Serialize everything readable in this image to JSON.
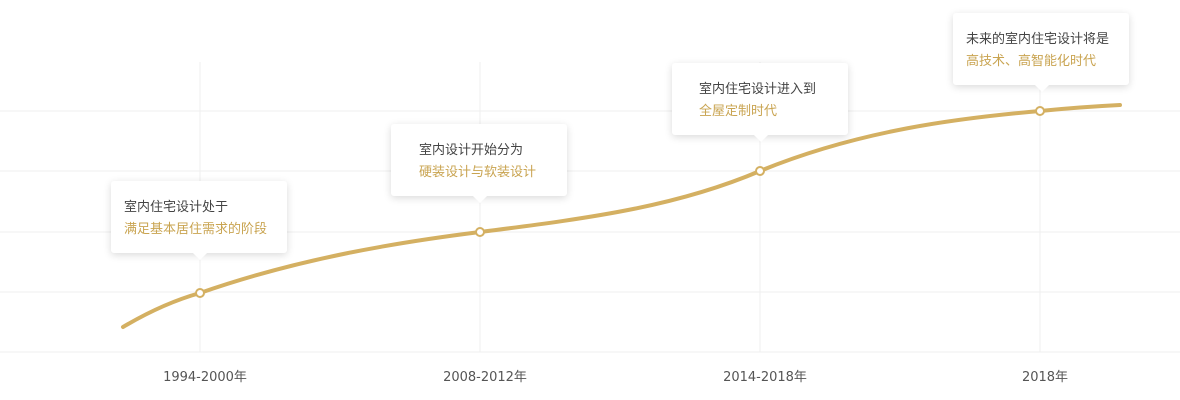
{
  "timeline": {
    "items": [
      {
        "period": "1994-2000年",
        "line1": "室内住宅设计处于",
        "line2": "满足基本居住需求的阶段"
      },
      {
        "period": "2008-2012年",
        "line1": "室内设计开始分为",
        "line2": "硬装设计与软装设计"
      },
      {
        "period": "2014-2018年",
        "line1": "室内住宅设计进入到",
        "line2": "全屋定制时代"
      },
      {
        "period": "2018年",
        "line1": "未来的室内住宅设计将是",
        "line2": "高技术、高智能化时代"
      }
    ]
  }
}
